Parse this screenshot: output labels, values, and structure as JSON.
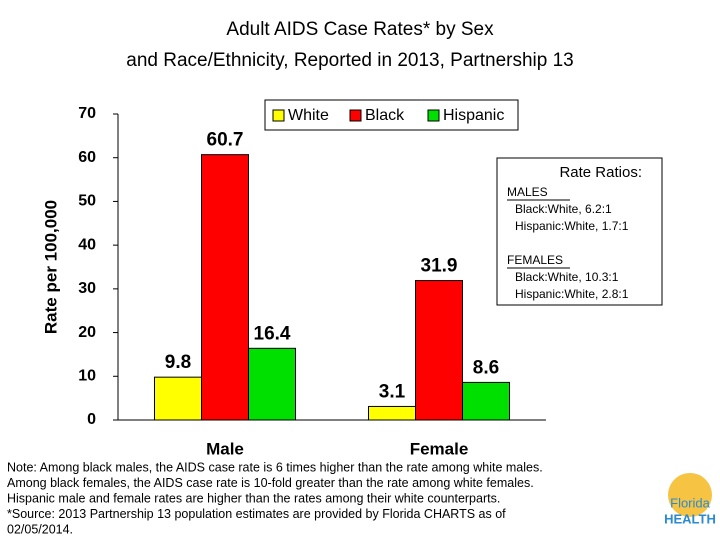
{
  "chart_data": {
    "type": "bar",
    "title": [
      "Adult AIDS Case Rates* by Sex",
      "and Race/Ethnicity, Reported in 2013, Partnership 13"
    ],
    "y_label": "Rate per 100,000",
    "categories": [
      "Male",
      "Female"
    ],
    "series": [
      {
        "name": "White",
        "color": "#ffff00",
        "values": [
          9.8,
          3.1
        ]
      },
      {
        "name": "Black",
        "color": "#ff0000",
        "values": [
          60.7,
          31.9
        ]
      },
      {
        "name": "Hispanic",
        "color": "#00e000",
        "values": [
          16.4,
          8.6
        ]
      }
    ],
    "ylim": [
      0,
      70
    ],
    "yticks": [
      0,
      10,
      20,
      30,
      40,
      50,
      60,
      70
    ],
    "grid": false,
    "legend": "top",
    "rate_ratios": {
      "title": "Rate Ratios:",
      "groups": [
        {
          "heading": "MALES",
          "lines": [
            "Black:White, 6.2:1",
            "Hispanic:White, 1.7:1"
          ]
        },
        {
          "heading": "FEMALES",
          "lines": [
            "Black:White, 10.3:1",
            "Hispanic:White, 2.8:1"
          ]
        }
      ]
    },
    "note": [
      "Note:  Among black males, the AIDS case rate is 6 times higher than the rate among white males.",
      "Among black females, the AIDS case rate is 10-fold greater than the rate among white females.",
      "Hispanic male and female rates are higher than the rates among their white counterparts.",
      "*Source: 2013 Partnership 13 population estimates are provided by Florida CHARTS as of",
      "02/05/2014."
    ],
    "logo": [
      "Florida",
      "HEALTH"
    ]
  }
}
